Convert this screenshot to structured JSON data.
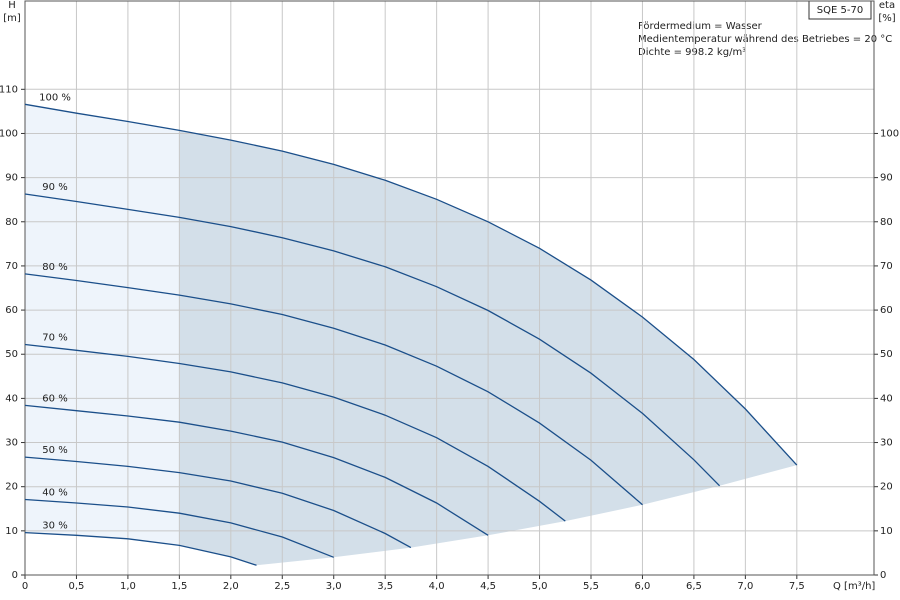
{
  "chart_data": {
    "type": "line",
    "label": "SQE 5-70",
    "annotations": [
      "Fördermedium = Wasser",
      "Medientemperatur während des Betriebes = 20 °C",
      "Dichte = 998.2 kg/m³"
    ],
    "xlabel": "Q [m³/h]",
    "ylabel": "H",
    "yunit": "[m]",
    "y2label": "eta",
    "y2unit": "[%]",
    "xlim": [
      0,
      8.25
    ],
    "ylim": [
      0,
      130
    ],
    "y2lim": [
      0,
      130
    ],
    "xticks": [
      0,
      {
        "value": 0.5,
        "label": "0,5"
      },
      {
        "value": 1,
        "label": "1,0"
      },
      {
        "value": 1.5,
        "label": "1,5"
      },
      {
        "value": 2,
        "label": "2,0"
      },
      {
        "value": 2.5,
        "label": "2,5"
      },
      {
        "value": 3,
        "label": "3,0"
      },
      {
        "value": 3.5,
        "label": "3,5"
      },
      {
        "value": 4,
        "label": "4,0"
      },
      {
        "value": 4.5,
        "label": "4,5"
      },
      {
        "value": 5,
        "label": "5,0"
      },
      {
        "value": 5.5,
        "label": "5,5"
      },
      {
        "value": 6,
        "label": "6,0"
      },
      {
        "value": 6.5,
        "label": "6,5"
      },
      {
        "value": 7,
        "label": "7,0"
      },
      {
        "value": 7.5,
        "label": "7,5"
      }
    ],
    "yticks": [
      0,
      10,
      20,
      30,
      40,
      50,
      60,
      70,
      80,
      90,
      100,
      110
    ],
    "y2ticks": [
      0,
      10,
      20,
      30,
      40,
      50,
      60,
      70,
      80,
      90,
      100
    ],
    "grid": true,
    "series": [
      {
        "name": "100 %",
        "color": "#1b4f8a",
        "x": [
          0,
          0.5,
          1,
          1.5,
          2,
          2.5,
          3,
          3.5,
          4,
          4.5,
          5,
          5.5,
          6,
          6.5,
          7,
          7.5
        ],
        "values": [
          106.6,
          104.6,
          102.7,
          100.7,
          98.5,
          96.0,
          93.0,
          89.4,
          85.1,
          80.0,
          74.0,
          66.8,
          58.4,
          48.8,
          37.6,
          24.9
        ]
      },
      {
        "name": "90 %",
        "color": "#1b4f8a",
        "x": [
          0,
          0.5,
          1,
          1.5,
          2,
          2.5,
          3,
          3.5,
          4,
          4.5,
          5,
          5.5,
          6,
          6.5,
          6.75
        ],
        "values": [
          86.3,
          84.6,
          82.8,
          81.0,
          78.9,
          76.4,
          73.4,
          69.8,
          65.3,
          59.9,
          53.4,
          45.7,
          36.6,
          26.1,
          20.2
        ]
      },
      {
        "name": "80 %",
        "color": "#1b4f8a",
        "x": [
          0,
          0.5,
          1,
          1.5,
          2,
          2.5,
          3,
          3.5,
          4,
          4.5,
          5,
          5.5,
          6
        ],
        "values": [
          68.2,
          66.7,
          65.1,
          63.4,
          61.4,
          59.0,
          55.9,
          52.1,
          47.3,
          41.5,
          34.4,
          26.0,
          15.9
        ]
      },
      {
        "name": "70 %",
        "color": "#1b4f8a",
        "x": [
          0,
          0.5,
          1,
          1.5,
          2,
          2.5,
          3,
          3.5,
          4,
          4.5,
          5,
          5.25
        ],
        "values": [
          52.2,
          50.9,
          49.5,
          47.9,
          46.0,
          43.5,
          40.3,
          36.2,
          31.1,
          24.6,
          16.7,
          12.2
        ]
      },
      {
        "name": "60 %",
        "color": "#1b4f8a",
        "x": [
          0,
          0.5,
          1,
          1.5,
          2,
          2.5,
          3,
          3.5,
          4,
          4.5
        ],
        "values": [
          38.4,
          37.2,
          36.0,
          34.6,
          32.6,
          30.1,
          26.6,
          22.1,
          16.3,
          9.0
        ]
      },
      {
        "name": "50 %",
        "color": "#1b4f8a",
        "x": [
          0,
          0.5,
          1,
          1.5,
          2,
          2.5,
          3,
          3.5,
          3.75
        ],
        "values": [
          26.7,
          25.7,
          24.6,
          23.2,
          21.3,
          18.5,
          14.6,
          9.4,
          6.2
        ]
      },
      {
        "name": "40 %",
        "color": "#1b4f8a",
        "x": [
          0,
          0.5,
          1,
          1.5,
          2,
          2.5,
          3
        ],
        "values": [
          17.1,
          16.3,
          15.4,
          14.0,
          11.8,
          8.6,
          4.0
        ]
      },
      {
        "name": "30 %",
        "color": "#1b4f8a",
        "x": [
          0,
          0.5,
          1,
          1.5,
          2,
          2.25
        ],
        "values": [
          9.6,
          9.0,
          8.2,
          6.7,
          4.1,
          2.2
        ]
      }
    ]
  }
}
